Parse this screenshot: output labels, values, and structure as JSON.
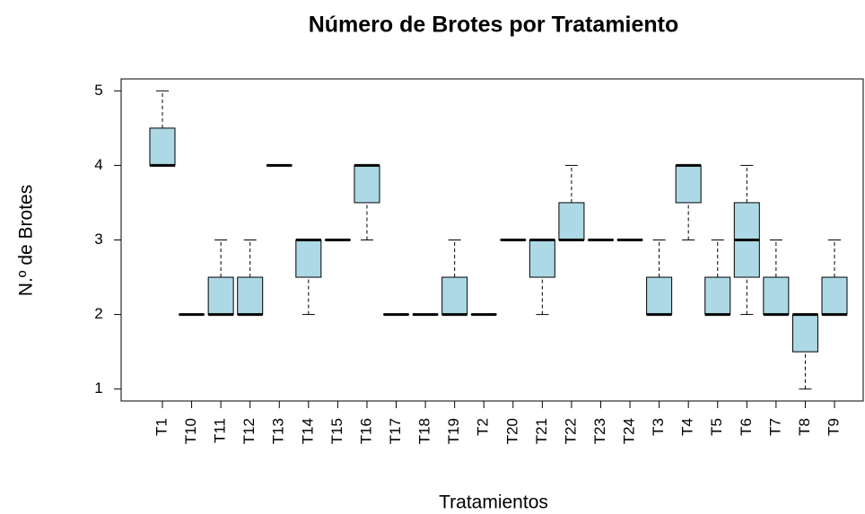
{
  "chart_data": {
    "type": "boxplot",
    "title": "Número de Brotes por Tratamiento",
    "x_label": "Tratamientos",
    "y_label": "N.º de Brotes",
    "categories": [
      "T1",
      "T10",
      "T11",
      "T12",
      "T13",
      "T14",
      "T15",
      "T16",
      "T17",
      "T18",
      "T19",
      "T2",
      "T20",
      "T21",
      "T22",
      "T23",
      "T24",
      "T3",
      "T4",
      "T5",
      "T6",
      "T7",
      "T8",
      "T9"
    ],
    "boxes": [
      {
        "min": 4,
        "q1": 4,
        "median": 4,
        "q3": 4.5,
        "max": 5
      },
      {
        "min": 2,
        "q1": 2,
        "median": 2,
        "q3": 2,
        "max": 2
      },
      {
        "min": 2,
        "q1": 2,
        "median": 2,
        "q3": 2.5,
        "max": 3
      },
      {
        "min": 2,
        "q1": 2,
        "median": 2,
        "q3": 2.5,
        "max": 3
      },
      {
        "min": 4,
        "q1": 4,
        "median": 4,
        "q3": 4,
        "max": 4
      },
      {
        "min": 2,
        "q1": 2.5,
        "median": 3,
        "q3": 3,
        "max": 3
      },
      {
        "min": 3,
        "q1": 3,
        "median": 3,
        "q3": 3,
        "max": 3
      },
      {
        "min": 3,
        "q1": 3.5,
        "median": 4,
        "q3": 4,
        "max": 4
      },
      {
        "min": 2,
        "q1": 2,
        "median": 2,
        "q3": 2,
        "max": 2
      },
      {
        "min": 2,
        "q1": 2,
        "median": 2,
        "q3": 2,
        "max": 2
      },
      {
        "min": 2,
        "q1": 2,
        "median": 2,
        "q3": 2.5,
        "max": 3
      },
      {
        "min": 2,
        "q1": 2,
        "median": 2,
        "q3": 2,
        "max": 2
      },
      {
        "min": 3,
        "q1": 3,
        "median": 3,
        "q3": 3,
        "max": 3
      },
      {
        "min": 2,
        "q1": 2.5,
        "median": 3,
        "q3": 3,
        "max": 3
      },
      {
        "min": 3,
        "q1": 3,
        "median": 3,
        "q3": 3.5,
        "max": 4
      },
      {
        "min": 3,
        "q1": 3,
        "median": 3,
        "q3": 3,
        "max": 3
      },
      {
        "min": 3,
        "q1": 3,
        "median": 3,
        "q3": 3,
        "max": 3
      },
      {
        "min": 2,
        "q1": 2,
        "median": 2,
        "q3": 2.5,
        "max": 3
      },
      {
        "min": 3,
        "q1": 3.5,
        "median": 4,
        "q3": 4,
        "max": 4
      },
      {
        "min": 2,
        "q1": 2,
        "median": 2,
        "q3": 2.5,
        "max": 3
      },
      {
        "min": 2,
        "q1": 2.5,
        "median": 3,
        "q3": 3.5,
        "max": 4
      },
      {
        "min": 2,
        "q1": 2,
        "median": 2,
        "q3": 2.5,
        "max": 3
      },
      {
        "min": 1,
        "q1": 1.5,
        "median": 2,
        "q3": 2,
        "max": 2
      },
      {
        "min": 2,
        "q1": 2,
        "median": 2,
        "q3": 2.5,
        "max": 3
      }
    ],
    "color": "#add8e6",
    "ylim": [
      0.84,
      5.16
    ],
    "yticks": [
      1,
      2,
      3,
      4,
      5
    ]
  }
}
